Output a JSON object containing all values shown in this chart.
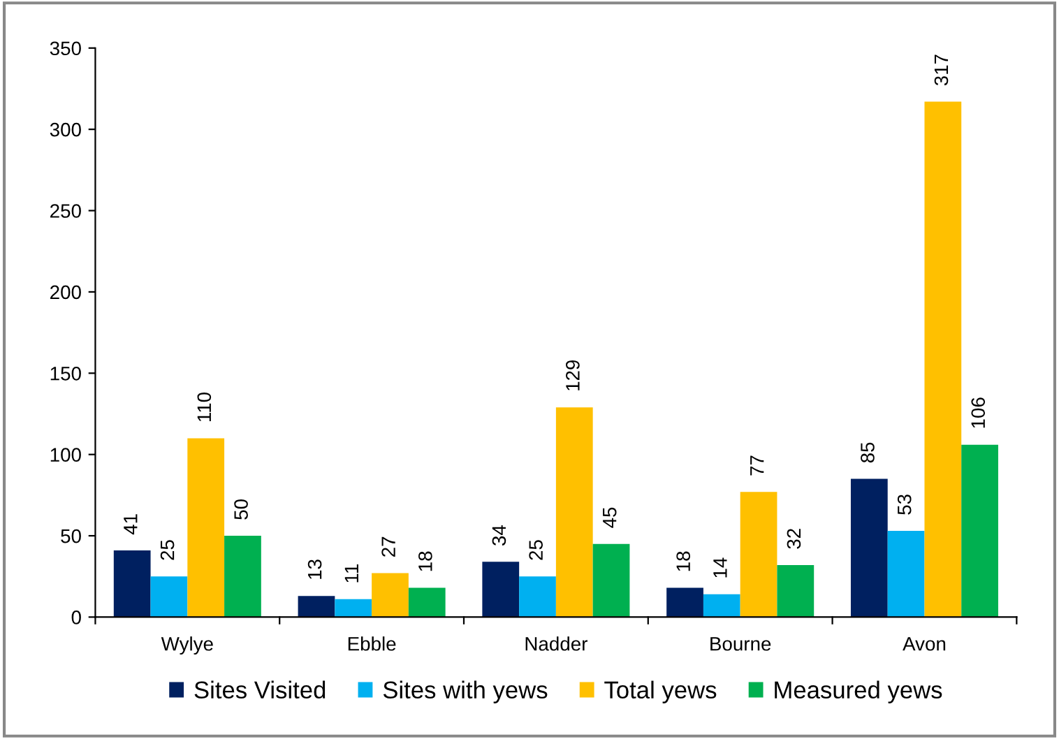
{
  "chart_data": {
    "type": "bar",
    "categories": [
      "Wylye",
      "Ebble",
      "Nadder",
      "Bourne",
      "Avon"
    ],
    "series": [
      {
        "name": "Sites Visited",
        "color": "#002060",
        "values": [
          41,
          13,
          34,
          18,
          85
        ]
      },
      {
        "name": "Sites with yews",
        "color": "#00b0f0",
        "values": [
          25,
          11,
          25,
          14,
          53
        ]
      },
      {
        "name": "Total yews",
        "color": "#ffc000",
        "values": [
          110,
          27,
          129,
          77,
          317
        ]
      },
      {
        "name": "Measured yews",
        "color": "#00b050",
        "values": [
          50,
          18,
          45,
          32,
          106
        ]
      }
    ],
    "ylim": [
      0,
      350
    ],
    "yticks": [
      0,
      50,
      100,
      150,
      200,
      250,
      300,
      350
    ],
    "grid": false,
    "legend": "bottom",
    "data_labels": true
  }
}
